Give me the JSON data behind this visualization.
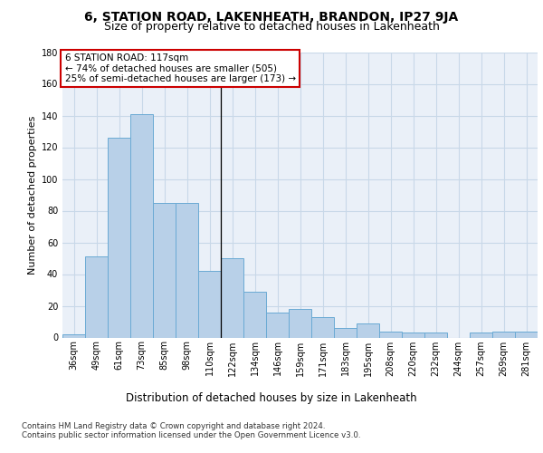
{
  "title1": "6, STATION ROAD, LAKENHEATH, BRANDON, IP27 9JA",
  "title2": "Size of property relative to detached houses in Lakenheath",
  "xlabel": "Distribution of detached houses by size in Lakenheath",
  "ylabel": "Number of detached properties",
  "categories": [
    "36sqm",
    "49sqm",
    "61sqm",
    "73sqm",
    "85sqm",
    "98sqm",
    "110sqm",
    "122sqm",
    "134sqm",
    "146sqm",
    "159sqm",
    "171sqm",
    "183sqm",
    "195sqm",
    "208sqm",
    "220sqm",
    "232sqm",
    "244sqm",
    "257sqm",
    "269sqm",
    "281sqm"
  ],
  "values": [
    2,
    51,
    126,
    141,
    85,
    85,
    42,
    50,
    29,
    16,
    18,
    13,
    6,
    9,
    4,
    3,
    3,
    0,
    3,
    4,
    4
  ],
  "bar_color": "#b8d0e8",
  "bar_edge_color": "#6aaad4",
  "vline_x_index": 6,
  "annotation_title": "6 STATION ROAD: 117sqm",
  "annotation_line1": "← 74% of detached houses are smaller (505)",
  "annotation_line2": "25% of semi-detached houses are larger (173) →",
  "annotation_box_color": "#ffffff",
  "annotation_box_edge": "#cc0000",
  "footer1": "Contains HM Land Registry data © Crown copyright and database right 2024.",
  "footer2": "Contains public sector information licensed under the Open Government Licence v3.0.",
  "ylim": [
    0,
    180
  ],
  "yticks": [
    0,
    20,
    40,
    60,
    80,
    100,
    120,
    140,
    160,
    180
  ],
  "grid_color": "#c8d8e8",
  "bg_color": "#eaf0f8",
  "title1_fontsize": 10,
  "title2_fontsize": 9,
  "ylabel_fontsize": 8,
  "xlabel_fontsize": 8.5,
  "tick_fontsize": 7,
  "annotation_fontsize": 7.5,
  "footer_fontsize": 6.2
}
